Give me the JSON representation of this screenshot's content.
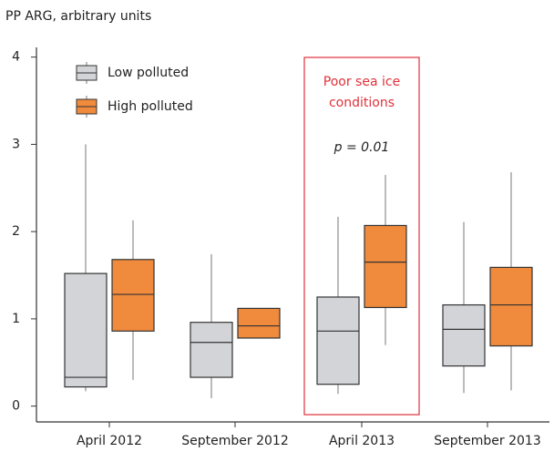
{
  "chart_data": {
    "type": "box",
    "title": "PP ARG, arbitrary units",
    "categories": [
      "April 2012",
      "September 2012",
      "April 2013",
      "September 2013"
    ],
    "series": [
      {
        "name": "Low polluted",
        "color": "#d3d4d8",
        "min": [
          0.17,
          0.09,
          0.14,
          0.15
        ],
        "q1": [
          0.22,
          0.33,
          0.25,
          0.46
        ],
        "median": [
          0.33,
          0.73,
          0.86,
          0.88
        ],
        "q3": [
          1.52,
          0.96,
          1.25,
          1.16
        ],
        "max": [
          3.0,
          1.74,
          2.17,
          2.11
        ]
      },
      {
        "name": "High polluted",
        "color": "#f08a3c",
        "min": [
          0.3,
          0.78,
          0.7,
          0.18
        ],
        "q1": [
          0.86,
          0.78,
          1.13,
          0.69
        ],
        "median": [
          1.28,
          0.92,
          1.65,
          1.16
        ],
        "q3": [
          1.68,
          1.12,
          2.07,
          1.59
        ],
        "max": [
          2.13,
          1.12,
          2.65,
          2.68
        ]
      }
    ],
    "ylim": [
      -0.15,
      4.08
    ],
    "yticks": [
      0,
      1,
      2,
      3,
      4
    ],
    "highlight": {
      "category": 2,
      "color": "#e0313b",
      "lines": [
        "Poor sea ice",
        "conditions"
      ],
      "note": "p = 0.01"
    }
  }
}
